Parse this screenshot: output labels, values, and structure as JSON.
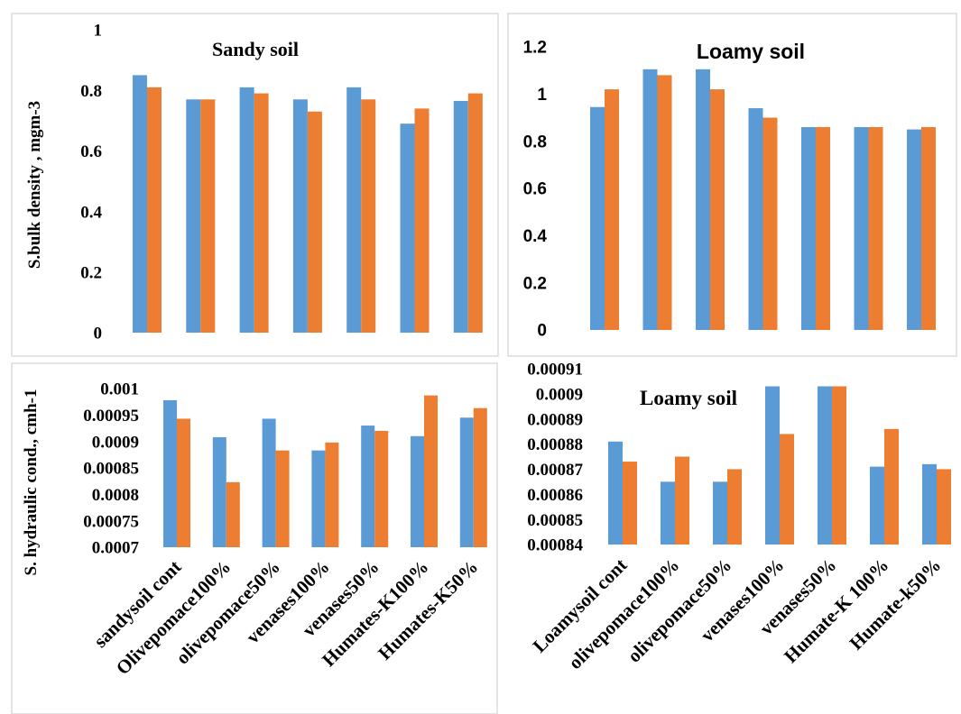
{
  "colors": {
    "series_a": "#5b9bd5",
    "series_b": "#ed7d31",
    "frame": "#c8c8c8"
  },
  "category_labels_left": [
    "sandysoil cont",
    "Olivepomace100%",
    "olivepomace50%",
    "venases100%",
    "venases50%",
    "Humates-K100%",
    "Humates-K50%"
  ],
  "category_labels_right": [
    "Loamysoil cont",
    "olivepomace100%",
    "olivepomace50%",
    "venases100%",
    "venases50%",
    "Humate-K 100%",
    "Humate-k50%"
  ],
  "chart_data": [
    {
      "type": "bar",
      "title": "Sandy soil",
      "ylabel": "S.bulk density , mgm-3",
      "ylim": [
        0,
        1
      ],
      "yticks": [
        "0",
        "0.2",
        "0.4",
        "0.6",
        "0.8",
        "1"
      ],
      "categories": [
        "sandysoil cont",
        "Olivepomace100%",
        "olivepomace50%",
        "venases100%",
        "venases50%",
        "Humates-K100%",
        "Humates-K50%"
      ],
      "series": [
        {
          "values": [
            0.85,
            0.77,
            0.81,
            0.77,
            0.81,
            0.69,
            0.765
          ]
        },
        {
          "values": [
            0.81,
            0.77,
            0.79,
            0.73,
            0.77,
            0.74,
            0.79
          ]
        }
      ],
      "grid": false
    },
    {
      "type": "bar",
      "title": "Loamy soil",
      "ylabel": "",
      "ylim": [
        0,
        1.2
      ],
      "yticks": [
        "0",
        "0.2",
        "0.4",
        "0.6",
        "0.8",
        "1",
        "1.2"
      ],
      "categories": [
        "Loamysoil cont",
        "olivepomace100%",
        "olivepomace50%",
        "venases100%",
        "venases50%",
        "Humate-K 100%",
        "Humate-k50%"
      ],
      "series": [
        {
          "values": [
            0.945,
            1.105,
            1.105,
            0.94,
            0.86,
            0.86,
            0.85
          ]
        },
        {
          "values": [
            1.02,
            1.08,
            1.02,
            0.9,
            0.86,
            0.86,
            0.86
          ]
        }
      ],
      "grid": false
    },
    {
      "type": "bar",
      "title": "",
      "ylabel": "S. hydraulic cond., cmh-1",
      "ylim": [
        0.0007,
        0.001
      ],
      "yticks": [
        "0.0007",
        "0.00075",
        "0.0008",
        "0.00085",
        "0.0009",
        "0.00095",
        "0.001"
      ],
      "categories": [
        "sandysoil cont",
        "Olivepomace100%",
        "olivepomace50%",
        "venases100%",
        "venases50%",
        "Humates-K100%",
        "Humates-K50%"
      ],
      "series": [
        {
          "values": [
            0.000978,
            0.000908,
            0.000943,
            0.000883,
            0.00093,
            0.00091,
            0.000945
          ]
        },
        {
          "values": [
            0.000943,
            0.000823,
            0.000883,
            0.000898,
            0.00092,
            0.000987,
            0.000963
          ]
        }
      ],
      "grid": false
    },
    {
      "type": "bar",
      "title": "Loamy soil",
      "ylabel": "",
      "ylim": [
        0.00084,
        0.00091
      ],
      "yticks": [
        "0.00084",
        "0.00085",
        "0.00086",
        "0.00087",
        "0.00088",
        "0.00089",
        "0.0009",
        "0.00091"
      ],
      "categories": [
        "Loamysoil cont",
        "olivepomace100%",
        "olivepomace50%",
        "venases100%",
        "venases50%",
        "Humate-K 100%",
        "Humate-k50%"
      ],
      "series": [
        {
          "values": [
            0.000881,
            0.000865,
            0.000865,
            0.000903,
            0.000903,
            0.000871,
            0.000872
          ]
        },
        {
          "values": [
            0.000873,
            0.000875,
            0.00087,
            0.000884,
            0.000903,
            0.000886,
            0.00087
          ]
        }
      ],
      "grid": false
    }
  ]
}
